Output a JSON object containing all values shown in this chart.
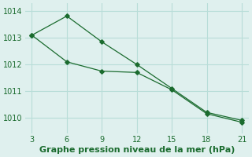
{
  "line1_x": [
    3,
    6,
    9,
    12,
    15,
    18,
    21
  ],
  "line1_y": [
    1013.1,
    1013.82,
    1012.85,
    1012.0,
    1011.1,
    1010.2,
    1009.9
  ],
  "line2_x": [
    3,
    6,
    9,
    12,
    15,
    18,
    21
  ],
  "line2_y": [
    1013.1,
    1012.1,
    1011.75,
    1011.7,
    1011.05,
    1010.15,
    1009.83
  ],
  "line_color": "#1a6b2e",
  "marker": "D",
  "markersize": 2.8,
  "xticks": [
    3,
    6,
    9,
    12,
    15,
    18,
    21
  ],
  "yticks": [
    1010,
    1011,
    1012,
    1013,
    1014
  ],
  "xlim": [
    2.4,
    21.6
  ],
  "ylim": [
    1009.4,
    1014.3
  ],
  "xlabel": "Graphe pression niveau de la mer (hPa)",
  "grid_color": "#b8ddd8",
  "bg_color": "#dff0ee",
  "tick_fontsize": 7,
  "label_fontsize": 8
}
